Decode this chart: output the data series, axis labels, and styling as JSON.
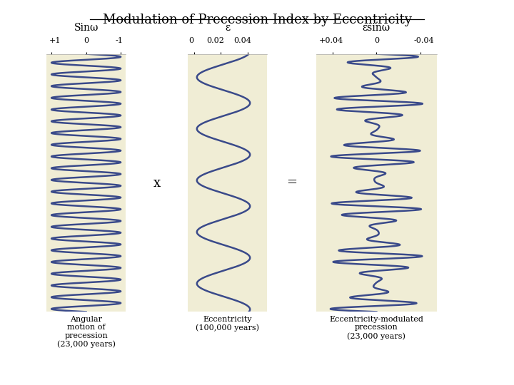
{
  "title": "Modulation of Precession Index by Eccentricity",
  "title_fontsize": 13,
  "panel_bg": "#F0EDD5",
  "curve_color": "#3A4A8A",
  "curve_lw": 1.8,
  "fig_bg": "#FFFFFF",
  "panel1": {
    "xlabel_top": "Sinω",
    "bottom_label": "Angular\nmotion of\nprecession\n(23,000 years)",
    "n_prec_cycles": 22,
    "total_steps": 5000
  },
  "panel2": {
    "xlabel_top": "ε",
    "bottom_label": "Eccentricity\n(100,000 years)",
    "n_ecc_cycles": 5,
    "total_steps": 5000,
    "ecc_mean": 0.022,
    "ecc_amp": 0.02
  },
  "panel3": {
    "xlabel_top": "εsinω",
    "bottom_label": "Eccentricity-modulated\nprecession\n(23,000 years)"
  },
  "operator1": "x",
  "operator2": "="
}
